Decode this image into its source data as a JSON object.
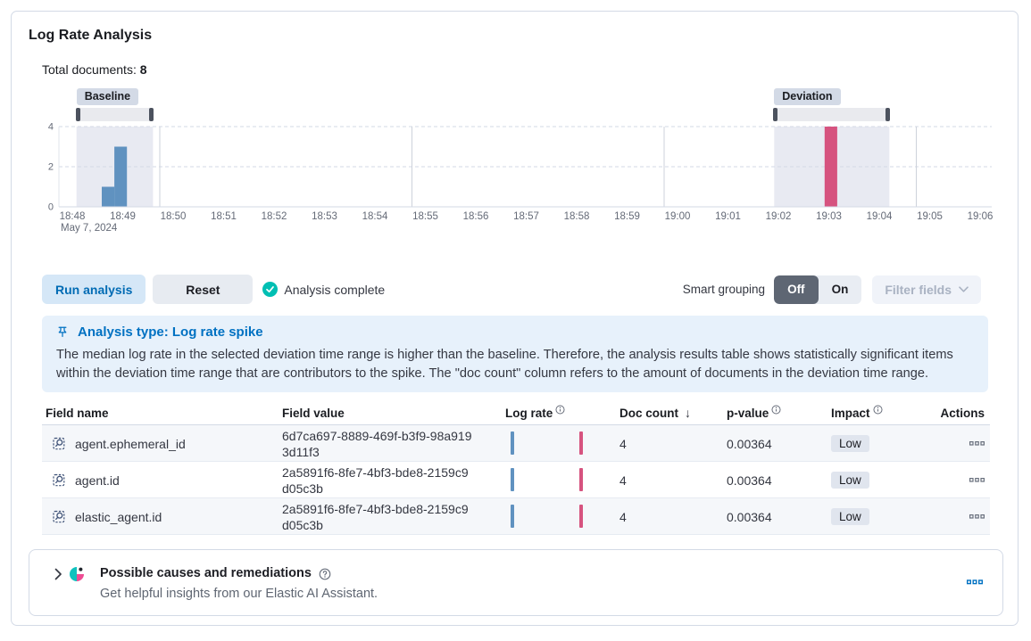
{
  "panel": {
    "title": "Log Rate Analysis",
    "total_documents_label": "Total documents:",
    "total_documents_value": "8"
  },
  "chart_data": {
    "type": "bar",
    "title": "Document count over time with baseline and deviation ranges",
    "x_ticks": [
      "18:48",
      "18:49",
      "18:50",
      "18:51",
      "18:52",
      "18:53",
      "18:54",
      "18:55",
      "18:56",
      "18:57",
      "18:58",
      "18:59",
      "19:00",
      "19:01",
      "19:02",
      "19:03",
      "19:04",
      "19:05",
      "19:06"
    ],
    "x_start_date_label": "May 7, 2024",
    "y_ticks": [
      0,
      2,
      4
    ],
    "ylim": [
      0,
      4
    ],
    "grid_vlines": [
      "18:50",
      "18:55",
      "19:00",
      "19:05"
    ],
    "bar_width_seconds": 15,
    "series": [
      {
        "name": "Baseline",
        "color": "#6092C0",
        "points": [
          {
            "time": "18:48:35",
            "value": 1
          },
          {
            "time": "18:48:50",
            "value": 3
          }
        ]
      },
      {
        "name": "Deviation",
        "color": "#D6537F",
        "points": [
          {
            "time": "19:02:55",
            "value": 4
          }
        ]
      }
    ],
    "brushes": [
      {
        "label": "Baseline",
        "start": "18:48:05",
        "end": "18:49:36"
      },
      {
        "label": "Deviation",
        "start": "19:01:55",
        "end": "19:04:12"
      }
    ]
  },
  "toolbar": {
    "run_button": "Run analysis",
    "reset_button": "Reset",
    "status": "Analysis complete",
    "smart_grouping_label": "Smart grouping",
    "toggle_off": "Off",
    "toggle_on": "On",
    "toggle_selected": "Off",
    "filter_fields_button": "Filter fields"
  },
  "callout": {
    "title": "Analysis type: Log rate spike",
    "body": "The median log rate in the selected deviation time range is higher than the baseline. Therefore, the analysis results table shows statistically significant items within the deviation time range that are contributors to the spike. The \"doc count\" column refers to the amount of documents in the deviation time range."
  },
  "table": {
    "columns": [
      "Field name",
      "Field value",
      "Log rate",
      "Doc count",
      "p-value",
      "Impact",
      "Actions"
    ],
    "sorted_column": "Doc count",
    "sort_direction": "descending",
    "info_columns": [
      "Log rate",
      "p-value",
      "Impact"
    ],
    "rows": [
      {
        "field_name": "agent.ephemeral_id",
        "field_value": "6d7ca697-8889-469f-b3f9-98a9193d11f3",
        "doc_count": "4",
        "p_value": "0.00364",
        "impact": "Low"
      },
      {
        "field_name": "agent.id",
        "field_value": "2a5891f6-8fe7-4bf3-bde8-2159c9d05c3b",
        "doc_count": "4",
        "p_value": "0.00364",
        "impact": "Low"
      },
      {
        "field_name": "elastic_agent.id",
        "field_value": "2a5891f6-8fe7-4bf3-bde8-2159c9d05c3b",
        "doc_count": "4",
        "p_value": "0.00364",
        "impact": "Low"
      }
    ]
  },
  "ai_panel": {
    "title": "Possible causes and remediations",
    "subtitle": "Get helpful insights from our Elastic AI Assistant."
  },
  "colors": {
    "primary": "#0071C2",
    "success": "#00BFB3",
    "baseline_bar": "#6092C0",
    "deviation_bar": "#D6537F",
    "callout_bg": "#E7F1FB",
    "border": "#D3DAE6",
    "grid_region": "#E8EAF2",
    "toggle_off_bg": "#5E6673"
  }
}
